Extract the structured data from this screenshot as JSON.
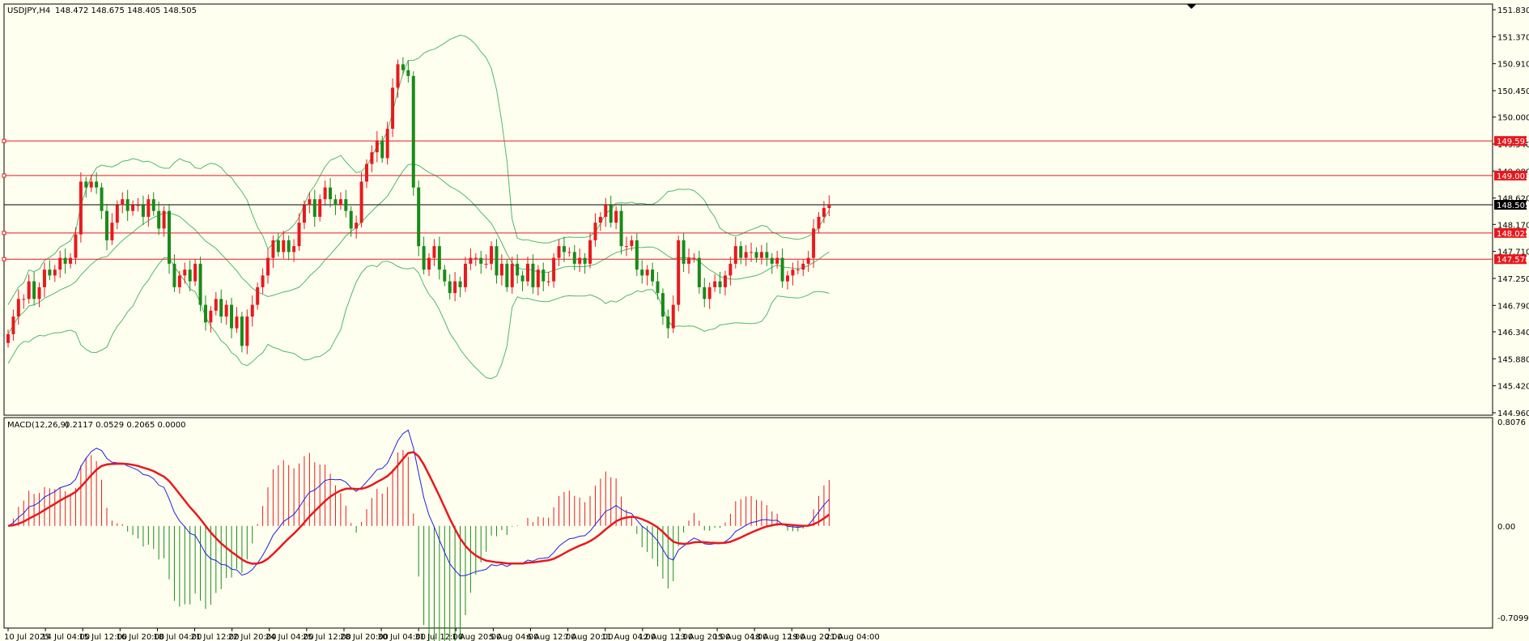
{
  "header": {
    "symbol": "USDJPY,H4",
    "ohlc": "148.472 148.675 148.405 148.505"
  },
  "macd_header": {
    "label": "MACD(12,26,9)",
    "values": "0.2117 0.0529 0.2065 0.0000"
  },
  "colors": {
    "background": "#fffff0",
    "up_candle": "#e8191e",
    "down_candle": "#1a8a1a",
    "bands": "#4fb86a",
    "level_line": "#e8191e",
    "current_line": "#000000",
    "macd_line": "#1f1fe0",
    "signal_line": "#e8191e",
    "hist_pos": "#e8191e",
    "hist_neg": "#1a8a1a"
  },
  "chart_data": [
    {
      "type": "candlestick",
      "ylim": [
        144.96,
        151.83
      ],
      "y_ticks": [
        "151.830",
        "151.370",
        "150.910",
        "150.450",
        "150.000",
        "149.540",
        "149.080",
        "148.620",
        "148.170",
        "147.710",
        "147.250",
        "146.790",
        "146.340",
        "145.880",
        "145.420",
        "144.960"
      ],
      "x_ticks": [
        "10 Jul 2025",
        "14 Jul 04:00",
        "15 Jul 12:00",
        "16 Jul 20:00",
        "18 Jul 04:00",
        "21 Jul 12:00",
        "22 Jul 20:00",
        "24 Jul 04:00",
        "25 Jul 12:00",
        "28 Jul 20:00",
        "30 Jul 04:00",
        "31 Jul 12:00",
        "1 Aug 20:00",
        "5 Aug 04:00",
        "6 Aug 12:00",
        "7 Aug 20:00",
        "11 Aug 04:00",
        "12 Aug 12:00",
        "13 Aug 20:00",
        "15 Aug 04:00",
        "18 Aug 12:00",
        "19 Aug 20:00",
        "21 Aug 04:00"
      ],
      "levels": [
        {
          "value": 149.593,
          "label": "149.593"
        },
        {
          "value": 149.003,
          "label": "149.003"
        },
        {
          "value": 148.025,
          "label": "148.025"
        },
        {
          "value": 147.578,
          "label": "147.578"
        }
      ],
      "current": {
        "value": 148.505,
        "label": "148.505"
      },
      "close": [
        146.3,
        146.6,
        146.9,
        146.9,
        147.2,
        146.9,
        147.1,
        147.4,
        147.3,
        147.4,
        147.6,
        147.5,
        147.6,
        148.0,
        148.9,
        148.8,
        148.9,
        148.8,
        148.4,
        147.9,
        148.2,
        148.5,
        148.6,
        148.4,
        148.5,
        148.5,
        148.3,
        148.6,
        148.4,
        148.1,
        148.4,
        147.5,
        147.1,
        147.3,
        147.4,
        147.2,
        147.5,
        146.8,
        146.5,
        146.7,
        146.9,
        146.6,
        146.8,
        146.4,
        146.6,
        146.1,
        146.6,
        146.8,
        147.1,
        147.3,
        147.6,
        147.9,
        147.7,
        147.9,
        147.7,
        147.8,
        148.2,
        148.5,
        148.6,
        148.3,
        148.6,
        148.8,
        148.6,
        148.5,
        148.6,
        148.4,
        148.1,
        148.2,
        148.9,
        149.2,
        149.4,
        149.6,
        149.3,
        149.8,
        150.5,
        150.9,
        150.8,
        150.7,
        148.8,
        147.8,
        147.4,
        147.6,
        147.8,
        147.4,
        147.2,
        147.0,
        147.2,
        147.1,
        147.5,
        147.6,
        147.6,
        147.5,
        147.5,
        147.8,
        147.3,
        147.5,
        147.1,
        147.5,
        147.3,
        147.2,
        147.5,
        147.1,
        147.4,
        147.2,
        147.2,
        147.6,
        147.8,
        147.7,
        147.7,
        147.5,
        147.6,
        147.5,
        147.9,
        148.2,
        148.3,
        148.5,
        148.2,
        148.4,
        147.8,
        147.8,
        147.9,
        147.4,
        147.3,
        147.4,
        147.2,
        147.0,
        146.6,
        146.4,
        146.8,
        147.9,
        147.5,
        147.6,
        147.6,
        147.1,
        146.9,
        147.1,
        147.2,
        147.1,
        147.3,
        147.5,
        147.8,
        147.6,
        147.7,
        147.7,
        147.6,
        147.7,
        147.6,
        147.5,
        147.6,
        147.2,
        147.3,
        147.4,
        147.4,
        147.5,
        147.6,
        148.1,
        148.3,
        148.45,
        148.505
      ],
      "macd_ylim": [
        -0.7099,
        0.8076
      ],
      "macd_ticks": [
        "0.8076",
        "0.00",
        "-0.7099"
      ]
    }
  ]
}
